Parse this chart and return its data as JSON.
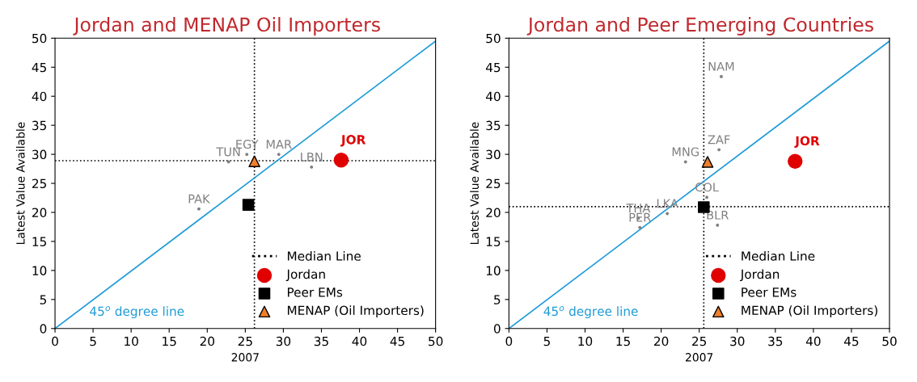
{
  "chart_data": [
    {
      "type": "scatter",
      "title": "Jordan and MENAP Oil Importers",
      "xlabel": "2007",
      "ylabel": "Latest Value Available",
      "xlim": [
        0,
        50
      ],
      "ylim": [
        0,
        50
      ],
      "xticks": [
        0,
        5,
        10,
        15,
        20,
        25,
        30,
        35,
        40,
        45,
        50
      ],
      "yticks": [
        0,
        5,
        10,
        15,
        20,
        25,
        30,
        35,
        40,
        45,
        50
      ],
      "grid": false,
      "legend": "bottom right",
      "series": [
        {
          "type": "line",
          "color": "#1f9bd7",
          "x": [
            0,
            50
          ],
          "values": [
            0,
            49.5
          ],
          "marker": "none"
        },
        {
          "color": "#808080",
          "x": [
            22.8,
            25.2,
            29.4,
            33.7,
            18.9
          ],
          "values": [
            28.7,
            30.0,
            30.0,
            27.8,
            20.6
          ],
          "marker": "circle",
          "value_labels": [
            "TUN",
            "EGY",
            "MAR",
            "LBN",
            "PAK"
          ]
        },
        {
          "name": "Jordan",
          "color": "#e00000",
          "x": [
            37.6
          ],
          "values": [
            29.0
          ],
          "marker": "circle",
          "value_labels": [
            "JOR"
          ]
        },
        {
          "name": "Peer EMs",
          "color": "#000000",
          "x": [
            25.4
          ],
          "values": [
            21.3
          ],
          "marker": "square"
        },
        {
          "name": "MENAP (Oil Importers)",
          "color": "#f07f2a",
          "x": [
            26.2
          ],
          "values": [
            28.8
          ],
          "marker": "triangle"
        }
      ],
      "ref_lines": [
        {
          "axis": "x",
          "value": 26.2,
          "label": "Median Line",
          "line_style": "dotted",
          "color": "#000000"
        },
        {
          "axis": "y",
          "value": 28.9,
          "line_style": "dotted",
          "color": "#000000"
        }
      ],
      "annotations": [
        "45$^{o}$ degree line"
      ]
    },
    {
      "type": "scatter",
      "title": "Jordan and Peer Emerging Countries",
      "xlabel": "2007",
      "ylabel": "Latest Value Available",
      "xlim": [
        0,
        50
      ],
      "ylim": [
        0,
        50
      ],
      "xticks": [
        0,
        5,
        10,
        15,
        20,
        25,
        30,
        35,
        40,
        45,
        50
      ],
      "yticks": [
        0,
        5,
        10,
        15,
        20,
        25,
        30,
        35,
        40,
        45,
        50
      ],
      "grid": false,
      "legend": "bottom right",
      "series": [
        {
          "type": "line",
          "color": "#1f9bd7",
          "x": [
            0,
            50
          ],
          "values": [
            0,
            49.5
          ],
          "marker": "none"
        },
        {
          "color": "#808080",
          "x": [
            27.9,
            27.6,
            23.2,
            26.0,
            27.4,
            20.8,
            17.0,
            17.2
          ],
          "values": [
            43.4,
            30.8,
            28.7,
            22.6,
            17.8,
            19.8,
            19.0,
            17.4
          ],
          "marker": "circle",
          "value_labels": [
            "NAM",
            "ZAF",
            "MNG",
            "COL",
            "BLR",
            "LKA",
            "THA",
            "PER"
          ]
        },
        {
          "name": "Jordan",
          "color": "#e00000",
          "x": [
            37.6
          ],
          "values": [
            28.8
          ],
          "marker": "circle",
          "value_labels": [
            "JOR"
          ]
        },
        {
          "name": "Peer EMs",
          "color": "#000000",
          "x": [
            25.6
          ],
          "values": [
            20.9
          ],
          "marker": "square"
        },
        {
          "name": "MENAP (Oil Importers)",
          "color": "#f07f2a",
          "x": [
            26.1
          ],
          "values": [
            28.7
          ],
          "marker": "triangle"
        }
      ],
      "ref_lines": [
        {
          "axis": "x",
          "value": 25.6,
          "label": "Median Line",
          "line_style": "dotted",
          "color": "#000000"
        },
        {
          "axis": "y",
          "value": 21.0,
          "line_style": "dotted",
          "color": "#000000"
        }
      ],
      "annotations": [
        "45$^{o}$ degree line"
      ]
    }
  ]
}
